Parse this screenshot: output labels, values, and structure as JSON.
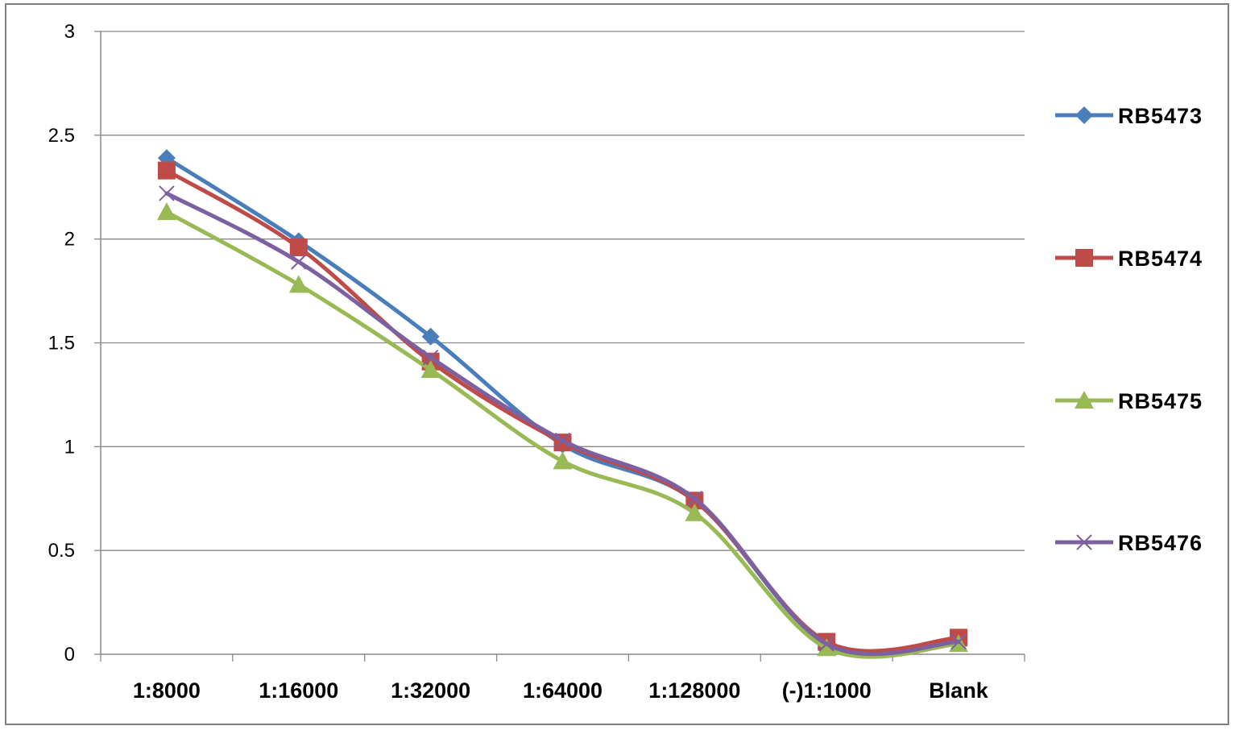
{
  "chart_data": {
    "type": "line",
    "categories": [
      "1:8000",
      "1:16000",
      "1:32000",
      "1:64000",
      "1:128000",
      "(-)1:1000",
      "Blank"
    ],
    "y_ticks": [
      "0",
      "0.5",
      "1",
      "1.5",
      "2",
      "2.5",
      "3"
    ],
    "ylim": [
      0,
      3
    ],
    "grid": true,
    "legend_position": "right",
    "smooth": true,
    "series": [
      {
        "name": "RB5473",
        "color": "#4a7ebb",
        "marker": "diamond",
        "values": [
          2.39,
          1.99,
          1.53,
          1.01,
          0.74,
          0.05,
          0.06
        ]
      },
      {
        "name": "RB5474",
        "color": "#be4b48",
        "marker": "square",
        "values": [
          2.33,
          1.96,
          1.41,
          1.02,
          0.74,
          0.06,
          0.08
        ]
      },
      {
        "name": "RB5475",
        "color": "#98b954",
        "marker": "triangle",
        "values": [
          2.13,
          1.78,
          1.37,
          0.93,
          0.68,
          0.03,
          0.05
        ]
      },
      {
        "name": "RB5476",
        "color": "#7d60a0",
        "marker": "x",
        "values": [
          2.22,
          1.89,
          1.43,
          1.03,
          0.75,
          0.05,
          0.06
        ]
      }
    ]
  }
}
